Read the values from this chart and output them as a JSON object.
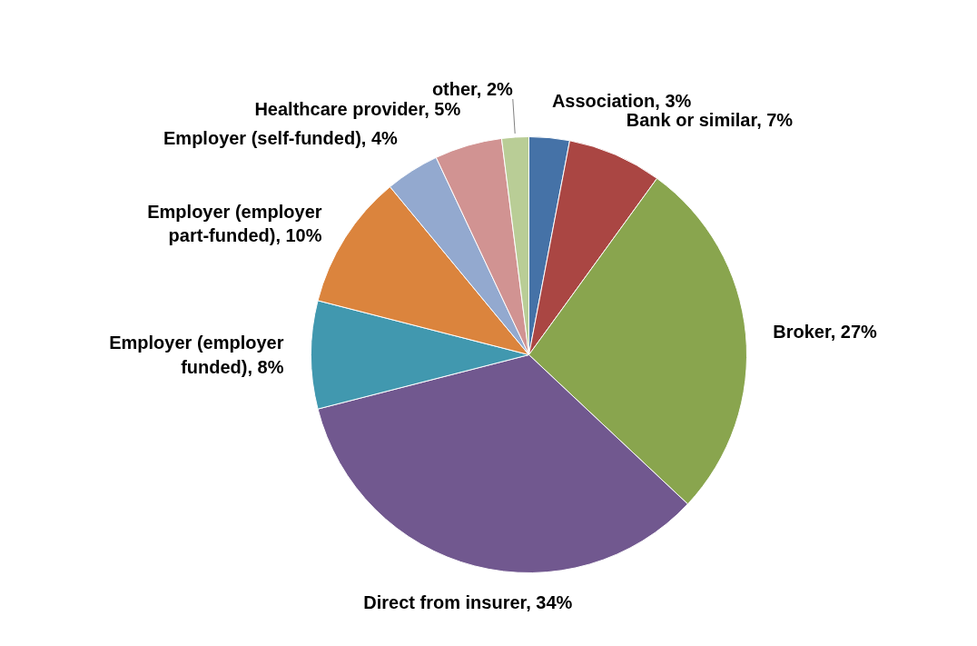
{
  "chart_data": {
    "type": "pie",
    "categories": [
      "Association",
      "Bank or similar",
      "Broker",
      "Direct from insurer",
      "Employer (employer funded)",
      "Employer (employer part-funded)",
      "Employer (self-funded)",
      "Healthcare provider",
      "other"
    ],
    "values": [
      3,
      7,
      27,
      34,
      8,
      10,
      4,
      5,
      2
    ],
    "colors": [
      "#4572a7",
      "#aa4643",
      "#89a54e",
      "#71588f",
      "#4198af",
      "#db843d",
      "#93a9cf",
      "#d19392",
      "#b9cd96"
    ],
    "value_labels": [
      "3%",
      "7%",
      "27%",
      "34%",
      "8%",
      "10%",
      "4%",
      "5%",
      "2%"
    ]
  }
}
